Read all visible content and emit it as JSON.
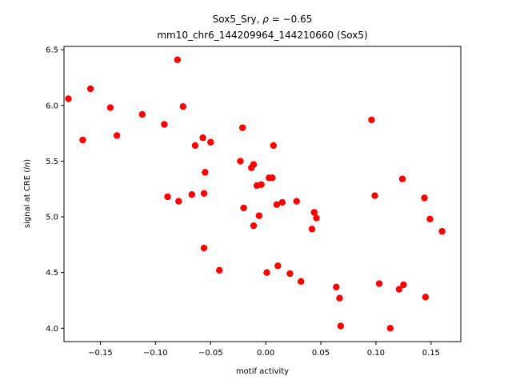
{
  "chart_data": {
    "type": "scatter",
    "title_line1_prefix": "Sox5_Sry, ",
    "title_line1_symbol": "ρ",
    "title_line1_suffix": " = −0.65",
    "title_line2": "mm10_chr6_144209964_144210660 (Sox5)",
    "xlabel": "motif activity",
    "ylabel_prefix": "signal at CRE (",
    "ylabel_italic": "ln",
    "ylabel_suffix": ")",
    "xlim": [
      -0.183,
      0.177
    ],
    "ylim": [
      3.88,
      6.53
    ],
    "xticks": [
      -0.15,
      -0.1,
      -0.05,
      0.0,
      0.05,
      0.1,
      0.15
    ],
    "xtick_labels": [
      "−0.15",
      "−0.10",
      "−0.05",
      "0.00",
      "0.05",
      "0.10",
      "0.15"
    ],
    "yticks": [
      4.0,
      4.5,
      5.0,
      5.5,
      6.0,
      6.5
    ],
    "ytick_labels": [
      "4.0",
      "4.5",
      "5.0",
      "5.5",
      "6.0",
      "6.5"
    ],
    "marker_color": "#ff0000",
    "grid": false,
    "points": [
      [
        -0.179,
        6.06
      ],
      [
        -0.166,
        5.69
      ],
      [
        -0.159,
        6.15
      ],
      [
        -0.141,
        5.98
      ],
      [
        -0.135,
        5.73
      ],
      [
        -0.112,
        5.92
      ],
      [
        -0.092,
        5.83
      ],
      [
        -0.089,
        5.18
      ],
      [
        -0.08,
        6.41
      ],
      [
        -0.079,
        5.14
      ],
      [
        -0.075,
        5.99
      ],
      [
        -0.067,
        5.2
      ],
      [
        -0.064,
        5.64
      ],
      [
        -0.057,
        5.71
      ],
      [
        -0.056,
        5.21
      ],
      [
        -0.056,
        4.72
      ],
      [
        -0.055,
        5.4
      ],
      [
        -0.05,
        5.67
      ],
      [
        -0.042,
        4.52
      ],
      [
        -0.023,
        5.5
      ],
      [
        -0.021,
        5.8
      ],
      [
        -0.02,
        5.08
      ],
      [
        -0.013,
        5.44
      ],
      [
        -0.011,
        5.47
      ],
      [
        -0.011,
        4.92
      ],
      [
        -0.008,
        5.28
      ],
      [
        -0.006,
        5.01
      ],
      [
        -0.004,
        5.29
      ],
      [
        0.001,
        4.5
      ],
      [
        0.003,
        5.35
      ],
      [
        0.006,
        5.35
      ],
      [
        0.007,
        5.64
      ],
      [
        0.01,
        5.11
      ],
      [
        0.011,
        4.56
      ],
      [
        0.015,
        5.13
      ],
      [
        0.022,
        4.49
      ],
      [
        0.028,
        5.14
      ],
      [
        0.032,
        4.42
      ],
      [
        0.042,
        4.89
      ],
      [
        0.044,
        5.04
      ],
      [
        0.046,
        4.99
      ],
      [
        0.064,
        4.37
      ],
      [
        0.067,
        4.27
      ],
      [
        0.068,
        4.02
      ],
      [
        0.096,
        5.87
      ],
      [
        0.099,
        5.19
      ],
      [
        0.103,
        4.4
      ],
      [
        0.113,
        4.0
      ],
      [
        0.121,
        4.35
      ],
      [
        0.124,
        5.34
      ],
      [
        0.125,
        4.39
      ],
      [
        0.144,
        5.17
      ],
      [
        0.145,
        4.28
      ],
      [
        0.149,
        4.98
      ],
      [
        0.16,
        4.87
      ]
    ]
  }
}
